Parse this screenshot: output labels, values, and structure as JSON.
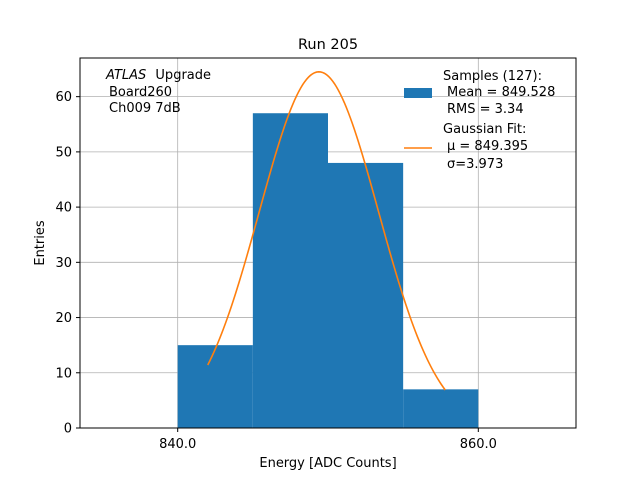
{
  "chart_data": {
    "type": "bar",
    "title": "Run 205",
    "xlabel": "Energy [ADC Counts]",
    "ylabel": "Entries",
    "xlim": [
      833.5,
      866.5
    ],
    "ylim": [
      0,
      67
    ],
    "x_ticks": [
      840,
      860
    ],
    "x_tick_labels": [
      "840.0",
      "860.0"
    ],
    "y_ticks": [
      0,
      10,
      20,
      30,
      40,
      50,
      60
    ],
    "y_tick_labels": [
      "0",
      "10",
      "20",
      "30",
      "40",
      "50",
      "60"
    ],
    "grid": true,
    "histogram": {
      "bin_edges": [
        840,
        845,
        850,
        855,
        860
      ],
      "counts": [
        15,
        57,
        48,
        7
      ],
      "color": "#1f77b4"
    },
    "fit": {
      "type": "gaussian",
      "mu": 849.395,
      "sigma": 3.973,
      "amplitude": 64.5,
      "x_range": [
        842,
        857.8
      ],
      "color": "#ff7f0e"
    },
    "annotation_lines": [
      "ATLAS",
      "Upgrade",
      "Board260",
      "Ch009 7dB"
    ],
    "legend": {
      "position": "top-right",
      "samples_lines": [
        "Samples (127):",
        "Mean = 849.528",
        "RMS = 3.34"
      ],
      "fit_lines": [
        "Gaussian Fit:",
        "μ = 849.395",
        "σ=3.973"
      ]
    }
  }
}
